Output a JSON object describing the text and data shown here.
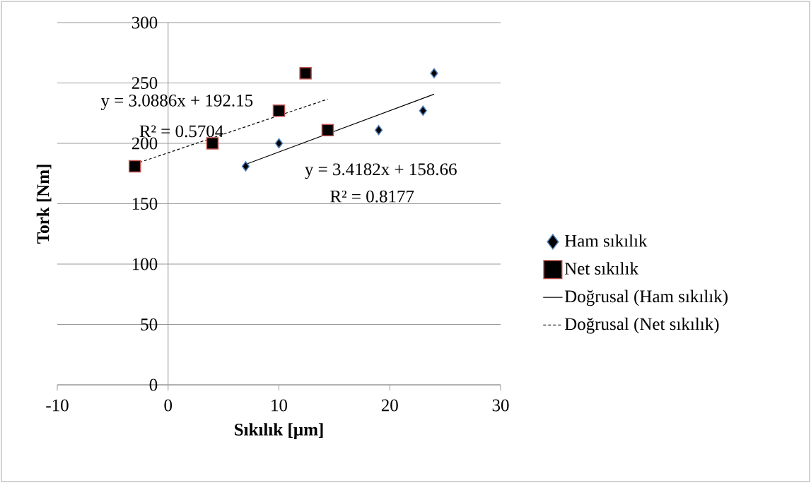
{
  "chart_data": {
    "type": "scatter",
    "xlabel": "Sıkılık [µm]",
    "ylabel": "Tork [Nm]",
    "xlim": [
      -10,
      30
    ],
    "xticks": [
      -10,
      0,
      10,
      20,
      30
    ],
    "ylim": [
      0,
      300
    ],
    "yticks": [
      0,
      50,
      100,
      150,
      200,
      250,
      300
    ],
    "grid": "y",
    "legend": "right",
    "series": [
      {
        "name": "Ham sıkılık",
        "marker": "diamond",
        "color": "#000000",
        "x": [
          7,
          10,
          19,
          23,
          24
        ],
        "values": [
          181,
          200,
          211,
          227,
          258
        ]
      },
      {
        "name": "Net sıkılık",
        "marker": "square",
        "color": "#000000",
        "x": [
          -3,
          4,
          10,
          12.4,
          14.4
        ],
        "values": [
          181,
          200,
          227,
          258,
          211
        ]
      },
      {
        "name": "Doğrusal (Ham sıkılık)",
        "type": "line",
        "line_style": "solid",
        "color": "#000000",
        "x": [
          7,
          24
        ],
        "values": [
          182.6,
          240.7
        ]
      },
      {
        "name": "Doğrusal (Net sıkılık)",
        "type": "line",
        "line_style": "dashed",
        "color": "#000000",
        "x": [
          -3,
          14.4
        ],
        "values": [
          182.9,
          236.6
        ]
      }
    ],
    "annotations": [
      "y = 3.0886x + 192.15",
      "R² = 0.5704",
      "y = 3.4182x + 158.66",
      "R² = 0.8177"
    ]
  }
}
